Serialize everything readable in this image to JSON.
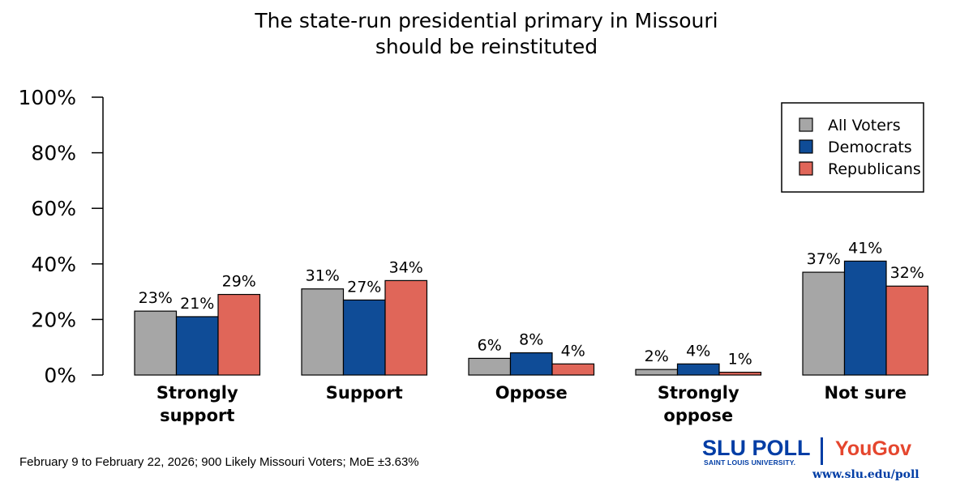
{
  "title_line1": "The state-run presidential primary in Missouri",
  "title_line2": "should be reinstituted",
  "footnote": "February 9 to February 22, 2026; 900 Likely Missouri Voters; MoE ±3.63%",
  "logo": {
    "slu": "SLU POLL",
    "slu_sub": "SAINT LOUIS UNIVERSITY.",
    "yougov": "YouGov",
    "url": "www.slu.edu/poll"
  },
  "colors": {
    "all_voters": "#A6A6A6",
    "democrats": "#0F4C97",
    "republicans": "#E06659"
  },
  "chart_data": {
    "type": "bar",
    "title": "The state-run presidential primary in Missouri should be reinstituted",
    "xlabel": "",
    "ylabel": "",
    "ylim": [
      0,
      100
    ],
    "yticks": [
      "0%",
      "20%",
      "40%",
      "60%",
      "80%",
      "100%"
    ],
    "ytick_values": [
      0,
      20,
      40,
      60,
      80,
      100
    ],
    "categories": [
      [
        "Strongly",
        "support"
      ],
      [
        "Support"
      ],
      [
        "Oppose"
      ],
      [
        "Strongly",
        "oppose"
      ],
      [
        "Not sure"
      ]
    ],
    "series": [
      {
        "name": "All Voters",
        "color": "#A6A6A6",
        "values": [
          23,
          31,
          6,
          2,
          37
        ],
        "labels": [
          "23%",
          "31%",
          "6%",
          "2%",
          "37%"
        ]
      },
      {
        "name": "Democrats",
        "color": "#0F4C97",
        "values": [
          21,
          27,
          8,
          4,
          41
        ],
        "labels": [
          "21%",
          "27%",
          "8%",
          "4%",
          "41%"
        ]
      },
      {
        "name": "Republicans",
        "color": "#E06659",
        "values": [
          29,
          34,
          4,
          1,
          32
        ],
        "labels": [
          "29%",
          "34%",
          "4%",
          "1%",
          "32%"
        ]
      }
    ],
    "legend_position": "top-right",
    "grid": false
  }
}
